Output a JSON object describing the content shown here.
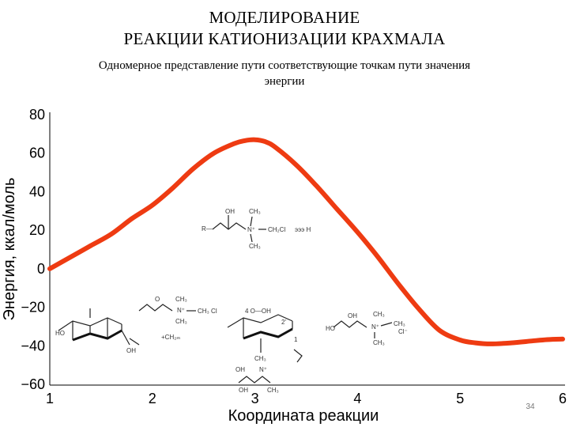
{
  "title": {
    "line1": "МОДЕЛИРОВАНИЕ",
    "line2": "РЕАКЦИИ КАТИОНИЗАЦИИ КРАХМАЛА"
  },
  "subtitle": {
    "line1": "Одномерное представление пути соответствующие точкам пути значения",
    "line2": "энергии"
  },
  "page_number": "34",
  "chart_data": {
    "type": "line",
    "xlabel": "Координата реакции",
    "ylabel": "Энергия, ккал/моль",
    "xlim": [
      1,
      6
    ],
    "ylim": [
      -60,
      80
    ],
    "x_ticks": [
      "1",
      "2",
      "3",
      "4",
      "5",
      "6"
    ],
    "y_ticks": [
      "80",
      "60",
      "40",
      "20",
      "0",
      "−20",
      "−40",
      "−60"
    ],
    "grid": false,
    "series": [
      {
        "color": "#ee3b12",
        "x": [
          1.0,
          1.2,
          1.4,
          1.6,
          1.8,
          2.0,
          2.2,
          2.4,
          2.6,
          2.8,
          2.9,
          3.0,
          3.1,
          3.2,
          3.4,
          3.6,
          3.8,
          4.0,
          4.2,
          4.4,
          4.6,
          4.8,
          5.0,
          5.15,
          5.3,
          5.5,
          5.7,
          5.85,
          6.0
        ],
        "y": [
          0,
          6,
          12,
          18,
          26,
          33,
          42,
          52,
          60,
          65,
          66.5,
          67,
          66,
          63,
          54,
          43,
          31,
          19,
          6,
          -8,
          -21,
          -32,
          -37,
          -38.5,
          -39,
          -38.5,
          -37.5,
          -36.8,
          -36.5
        ]
      }
    ],
    "annotations": {
      "molecules": [
        "structure-ammonium-reagent",
        "structure-starch-glucose-unit",
        "structure-epoxide-reagent",
        "structure-transition-complex",
        "structure-product-ammonium"
      ]
    }
  }
}
